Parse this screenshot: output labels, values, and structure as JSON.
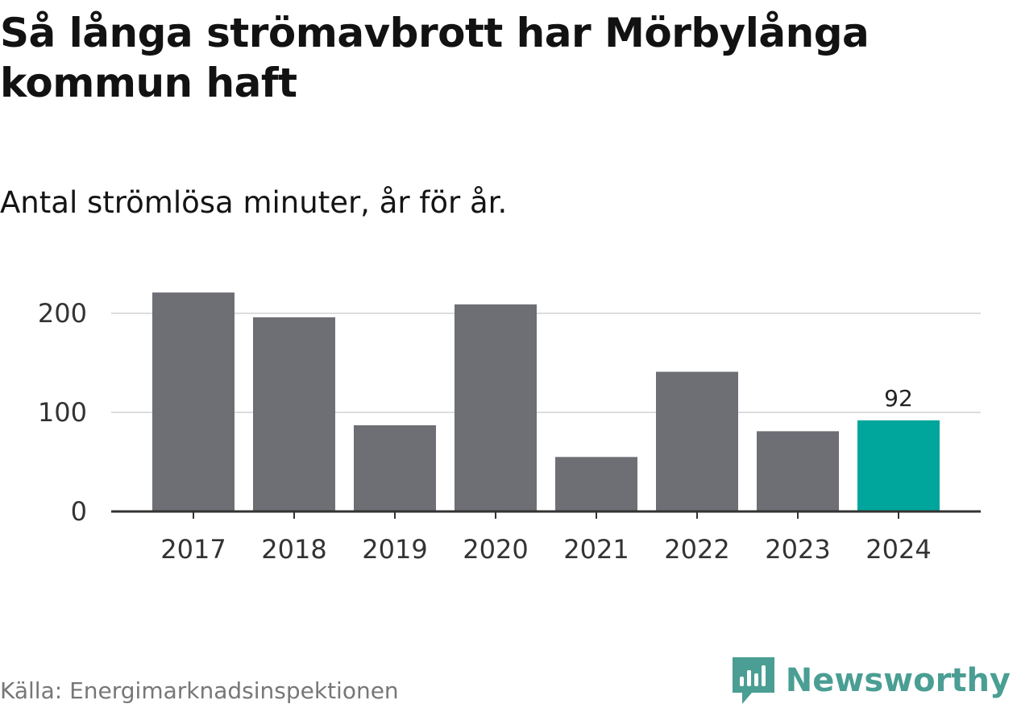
{
  "header": {
    "title": "Så långa strömavbrott har Mörbylånga kommun haft",
    "subtitle": "Antal strömlösa minuter, år för år."
  },
  "footer": {
    "source": "Källa: Energimarknadsinspektionen",
    "brand": "Newsworthy"
  },
  "colors": {
    "bar_default": "#6e6e75",
    "bar_highlight": "#00a69b",
    "grid": "#dddddd",
    "axis": "#333333",
    "brand": "#4a9e93"
  },
  "chart_data": {
    "type": "bar",
    "title": "Så långa strömavbrott har Mörbylånga kommun haft",
    "subtitle": "Antal strömlösa minuter, år för år.",
    "xlabel": "",
    "ylabel": "",
    "categories": [
      "2017",
      "2018",
      "2019",
      "2020",
      "2021",
      "2022",
      "2023",
      "2024"
    ],
    "values": [
      221,
      196,
      87,
      209,
      55,
      141,
      81,
      92
    ],
    "highlight_index": 7,
    "data_labels": [
      {
        "index": 7,
        "text": "92"
      }
    ],
    "ylim": [
      0,
      240
    ],
    "yticks": [
      0,
      100,
      200
    ],
    "ytick_labels": [
      "0",
      "100",
      "200"
    ],
    "grid": true,
    "legend": "none"
  }
}
